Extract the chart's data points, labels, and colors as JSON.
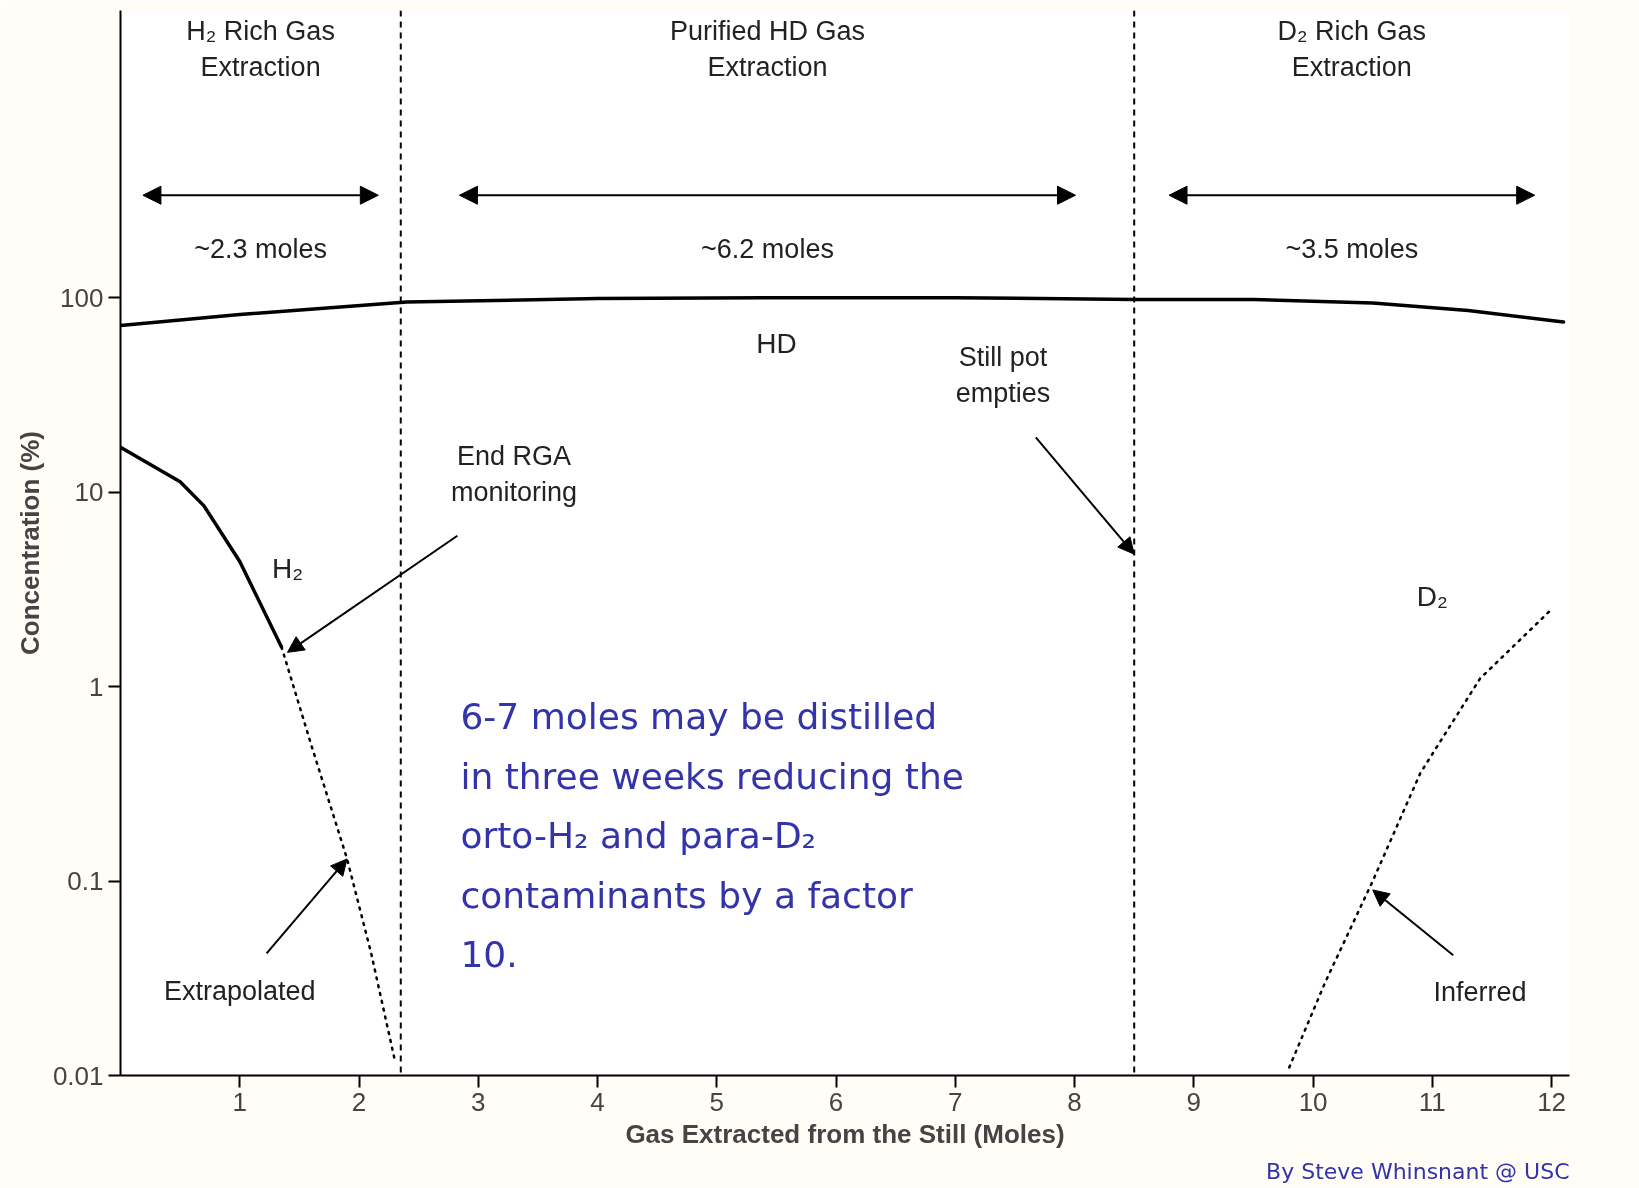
{
  "chart_data": {
    "type": "line",
    "xlabel": "Gas Extracted from the Still (Moles)",
    "ylabel": "Concentration (%)",
    "xlim": [
      0,
      12.15
    ],
    "xticks": [
      1,
      2,
      3,
      4,
      5,
      6,
      7,
      8,
      9,
      10,
      11,
      12
    ],
    "ylim": [
      0.01,
      3000
    ],
    "yticks": [
      0.01,
      0.1,
      1,
      10,
      100
    ],
    "log": "y",
    "grid": false,
    "marker": "none",
    "series": [
      {
        "name": "HD",
        "color": "#000000",
        "line_style": "solid",
        "x": [
          0,
          1,
          2.4,
          4,
          5.5,
          7,
          8.5,
          9.5,
          10.5,
          11.3,
          12.1
        ],
        "values": [
          72,
          82,
          95,
          99,
          100,
          100,
          98,
          98,
          94,
          86,
          75
        ]
      },
      {
        "name": "H₂",
        "color": "#000000",
        "line_style": "solid",
        "x": [
          0,
          0.5,
          0.7,
          1.0,
          1.35
        ],
        "values": [
          17,
          11.3,
          8.5,
          4.4,
          1.6
        ]
      },
      {
        "color": "#000000",
        "line_style": "dotted",
        "x": [
          1.35,
          1.6,
          1.9,
          2.1,
          2.3
        ],
        "values": [
          1.6,
          0.5,
          0.13,
          0.043,
          0.012
        ]
      },
      {
        "name": "D₂",
        "color": "#000000",
        "line_style": "dotted",
        "x": [
          9.8,
          10.1,
          10.5,
          10.9,
          11.4,
          12.0
        ],
        "values": [
          0.011,
          0.03,
          0.1,
          0.36,
          1.1,
          2.5
        ]
      }
    ],
    "ref_lines": [
      {
        "axis": "x",
        "value": 2.35,
        "line_style": "dashed",
        "color": "#000000"
      },
      {
        "axis": "x",
        "value": 8.5,
        "line_style": "dashed",
        "color": "#000000"
      }
    ],
    "annotations": [
      "H₂ Rich Gas\nExtraction",
      "Purified HD Gas\nExtraction",
      "D₂ Rich Gas\nExtraction",
      "~2.3 moles",
      "~6.2 moles",
      "~3.5 moles",
      {
        "text": "End RGA\nmonitoring",
        "x": 1.4,
        "y": 1.5
      },
      {
        "text": "Still pot\nempties",
        "x": 8.5,
        "y": 4.8
      },
      {
        "text": "Extrapolated",
        "x": 1.9,
        "y": 0.13
      },
      {
        "text": "Inferred",
        "x": 10.5,
        "y": 0.09
      },
      "6-7 moles may be distilled\nin three weeks reducing the\norto-H₂ and para-D₂\ncontaminants by a factor\n10.",
      "By Steve Whinsnant @ USC"
    ]
  }
}
